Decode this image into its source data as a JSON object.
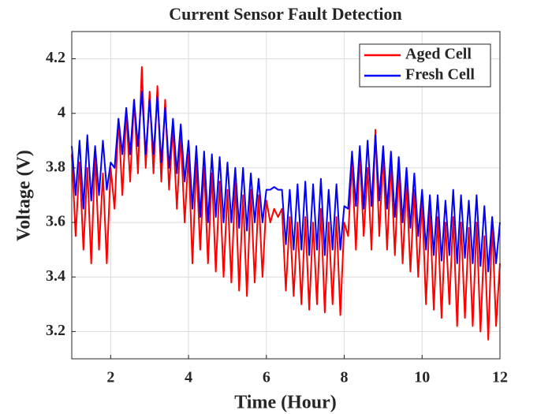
{
  "chart_data": {
    "type": "line",
    "title": "Current Sensor Fault Detection",
    "xlabel": "Time (Hour)",
    "ylabel": "Voltage (V)",
    "xlim": [
      1,
      12
    ],
    "xticks": [
      2,
      4,
      6,
      8,
      10,
      12
    ],
    "ylim": [
      3.1,
      4.3
    ],
    "yticks": [
      3.2,
      3.4,
      3.6,
      3.8,
      4,
      4.2
    ],
    "grid": true,
    "legend": "upper right",
    "x": [
      1.0,
      1.1,
      1.2,
      1.3,
      1.4,
      1.5,
      1.6,
      1.7,
      1.8,
      1.9,
      2.0,
      2.1,
      2.2,
      2.3,
      2.4,
      2.5,
      2.6,
      2.7,
      2.8,
      2.9,
      3.0,
      3.1,
      3.2,
      3.3,
      3.4,
      3.5,
      3.6,
      3.7,
      3.8,
      3.9,
      4.0,
      4.1,
      4.2,
      4.3,
      4.4,
      4.5,
      4.6,
      4.7,
      4.8,
      4.9,
      5.0,
      5.1,
      5.2,
      5.3,
      5.4,
      5.5,
      5.6,
      5.7,
      5.8,
      5.9,
      6.0,
      6.1,
      6.2,
      6.3,
      6.4,
      6.5,
      6.6,
      6.7,
      6.8,
      6.9,
      7.0,
      7.1,
      7.2,
      7.3,
      7.4,
      7.5,
      7.6,
      7.7,
      7.8,
      7.9,
      8.0,
      8.1,
      8.2,
      8.3,
      8.4,
      8.5,
      8.6,
      8.7,
      8.8,
      8.9,
      9.0,
      9.1,
      9.2,
      9.3,
      9.4,
      9.5,
      9.6,
      9.7,
      9.8,
      9.9,
      10.0,
      10.1,
      10.2,
      10.3,
      10.4,
      10.5,
      10.6,
      10.7,
      10.8,
      10.9,
      11.0,
      11.1,
      11.2,
      11.3,
      11.4,
      11.5,
      11.6,
      11.7,
      11.8,
      11.9,
      12.0
    ],
    "series": [
      {
        "name": "Aged Cell",
        "color": "#ff0000",
        "values": [
          3.85,
          3.55,
          3.82,
          3.5,
          3.8,
          3.45,
          3.85,
          3.5,
          3.78,
          3.45,
          3.8,
          3.65,
          3.98,
          3.7,
          4.0,
          3.75,
          4.05,
          3.78,
          4.17,
          3.8,
          4.08,
          3.78,
          4.1,
          3.75,
          4.05,
          3.72,
          3.95,
          3.65,
          3.92,
          3.6,
          3.85,
          3.45,
          3.82,
          3.5,
          3.8,
          3.45,
          3.78,
          3.42,
          3.75,
          3.4,
          3.72,
          3.38,
          3.75,
          3.35,
          3.7,
          3.33,
          3.72,
          3.38,
          3.7,
          3.4,
          3.68,
          3.6,
          3.65,
          3.62,
          3.65,
          3.35,
          3.62,
          3.33,
          3.6,
          3.3,
          3.62,
          3.28,
          3.6,
          3.3,
          3.65,
          3.27,
          3.6,
          3.3,
          3.62,
          3.26,
          3.6,
          3.55,
          3.82,
          3.5,
          3.85,
          3.55,
          3.8,
          3.5,
          3.94,
          3.55,
          3.85,
          3.5,
          3.82,
          3.48,
          3.8,
          3.45,
          3.75,
          3.42,
          3.72,
          3.4,
          3.68,
          3.3,
          3.65,
          3.28,
          3.62,
          3.25,
          3.6,
          3.3,
          3.62,
          3.22,
          3.6,
          3.25,
          3.58,
          3.22,
          3.6,
          3.2,
          3.55,
          3.17,
          3.6,
          3.22,
          3.45
        ]
      },
      {
        "name": "Fresh Cell",
        "color": "#0000ff",
        "values": [
          3.88,
          3.7,
          3.9,
          3.65,
          3.92,
          3.68,
          3.88,
          3.7,
          3.9,
          3.72,
          3.82,
          3.8,
          3.98,
          3.85,
          4.02,
          3.85,
          4.05,
          3.88,
          4.08,
          3.85,
          4.05,
          3.85,
          4.06,
          3.82,
          4.02,
          3.8,
          3.98,
          3.78,
          3.96,
          3.75,
          3.9,
          3.65,
          3.88,
          3.62,
          3.86,
          3.6,
          3.85,
          3.62,
          3.84,
          3.6,
          3.82,
          3.6,
          3.8,
          3.58,
          3.8,
          3.57,
          3.78,
          3.6,
          3.76,
          3.6,
          3.72,
          3.72,
          3.73,
          3.72,
          3.72,
          3.52,
          3.72,
          3.5,
          3.74,
          3.5,
          3.75,
          3.48,
          3.74,
          3.5,
          3.76,
          3.48,
          3.72,
          3.5,
          3.74,
          3.5,
          3.66,
          3.65,
          3.86,
          3.66,
          3.88,
          3.65,
          3.9,
          3.66,
          3.92,
          3.68,
          3.88,
          3.65,
          3.86,
          3.62,
          3.84,
          3.6,
          3.8,
          3.58,
          3.78,
          3.55,
          3.72,
          3.5,
          3.7,
          3.48,
          3.7,
          3.46,
          3.68,
          3.48,
          3.72,
          3.45,
          3.7,
          3.47,
          3.68,
          3.45,
          3.7,
          3.44,
          3.66,
          3.42,
          3.62,
          3.45,
          3.6
        ]
      }
    ]
  }
}
